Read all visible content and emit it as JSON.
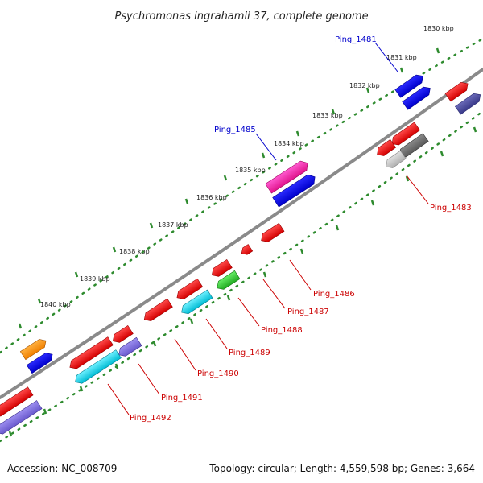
{
  "title": "Psychromonas ingrahamii 37, complete genome",
  "accession": "Accession: NC_008709",
  "summary": "Topology: circular; Length: 4,559,598 bp; Genes: 3,664",
  "ticks": [
    "1830 kbp",
    "1831 kbp",
    "1832 kbp",
    "1833 kbp",
    "1834 kbp",
    "1835 kbp",
    "1836 kbp",
    "1837 kbp",
    "1838 kbp",
    "1839 kbp",
    "1840 kbp"
  ],
  "labels": {
    "ping_1481": "Ping_1481",
    "ping_1485": "Ping_1485",
    "ping_1483": "Ping_1483",
    "ping_1486": "Ping_1486",
    "ping_1487": "Ping_1487",
    "ping_1488": "Ping_1488",
    "ping_1489": "Ping_1489",
    "ping_1490": "Ping_1490",
    "ping_1491": "Ping_1491",
    "ping_1492": "Ping_1492"
  },
  "colors": {
    "forward_label": "#0000cc",
    "reverse_label": "#cc0000",
    "backbone": "#808080",
    "ruler": "#2e8b2e"
  }
}
